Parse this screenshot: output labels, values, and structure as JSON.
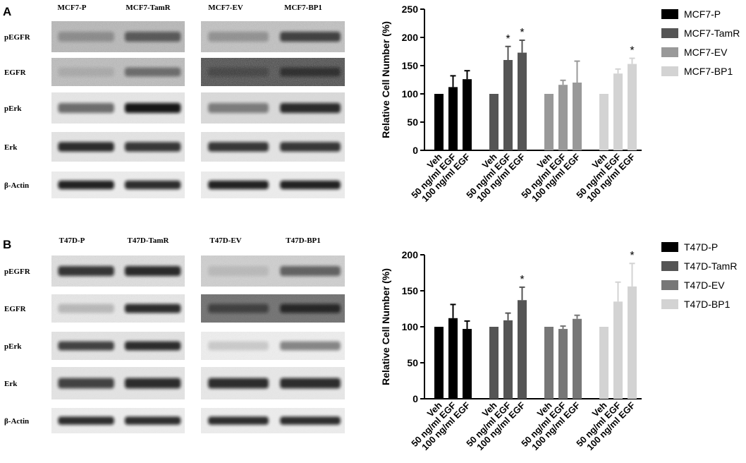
{
  "panels": [
    {
      "letter": "A",
      "blot": {
        "groups": [
          {
            "labels": [
              "MCF7-P",
              "MCF7-TamR"
            ]
          },
          {
            "labels": [
              "MCF7-EV",
              "MCF7-BP1"
            ]
          }
        ],
        "rows": [
          {
            "label": "pEGFR",
            "bg": [
              "#b8b8b8",
              "#c2c2c2"
            ],
            "lanes": [
              [
                0.25,
                0.55
              ],
              [
                0.25,
                0.7
              ]
            ],
            "noise": 0.35
          },
          {
            "label": "EGFR",
            "bg": [
              "#bdbdbd",
              "#4a4a4a"
            ],
            "lanes": [
              [
                0.1,
                0.45
              ],
              [
                0.25,
                0.55
              ]
            ],
            "noise": 0.4
          },
          {
            "label": "pErk",
            "bg": [
              "#e6e6e6",
              "#dadada"
            ],
            "lanes": [
              [
                0.55,
                0.95
              ],
              [
                0.45,
                0.85
              ]
            ],
            "noise": 0.1
          },
          {
            "label": "Erk",
            "bg": [
              "#e4e4e4",
              "#e4e4e4"
            ],
            "lanes": [
              [
                0.85,
                0.8
              ],
              [
                0.8,
                0.8
              ]
            ],
            "noise": 0.1
          },
          {
            "label": "β-Actin",
            "bg": [
              "#ececec",
              "#ececec"
            ],
            "lanes": [
              [
                0.9,
                0.85
              ],
              [
                0.9,
                0.9
              ]
            ],
            "noise": 0.05
          }
        ]
      },
      "chart_data": {
        "type": "bar",
        "ylabel": "Relative Cell Number (%)",
        "ylim": [
          0,
          250
        ],
        "yticks": [
          0,
          50,
          100,
          150,
          200,
          250
        ],
        "categories": [
          "Veh",
          "50 ng/ml EGF",
          "100 ng/ml EGF"
        ],
        "legend_position": "top-right",
        "series": [
          {
            "name": "MCF7-P",
            "color": "#000000",
            "values": [
              100,
              112,
              126
            ],
            "errors": [
              0,
              20,
              15
            ],
            "sig": [
              "",
              "",
              ""
            ]
          },
          {
            "name": "MCF7-TamR",
            "color": "#555555",
            "values": [
              100,
              160,
              173
            ],
            "errors": [
              0,
              24,
              22
            ],
            "sig": [
              "",
              "*",
              "*"
            ]
          },
          {
            "name": "MCF7-EV",
            "color": "#999999",
            "values": [
              100,
              116,
              120
            ],
            "errors": [
              0,
              8,
              38
            ],
            "sig": [
              "",
              "",
              ""
            ]
          },
          {
            "name": "MCF7-BP1",
            "color": "#d3d3d3",
            "values": [
              100,
              136,
              153
            ],
            "errors": [
              0,
              8,
              10
            ],
            "sig": [
              "",
              "",
              "*"
            ]
          }
        ]
      }
    },
    {
      "letter": "B",
      "blot": {
        "groups": [
          {
            "labels": [
              "T47D-P",
              "T47D-TamR"
            ]
          },
          {
            "labels": [
              "T47D-EV",
              "T47D-BP1"
            ]
          }
        ],
        "rows": [
          {
            "label": "pEGFR",
            "bg": [
              "#e0e0e0",
              "#d0d0d0"
            ],
            "lanes": [
              [
                0.8,
                0.85
              ],
              [
                0.1,
                0.55
              ]
            ],
            "noise": 0.25
          },
          {
            "label": "EGFR",
            "bg": [
              "#e8e8e8",
              "#6e6e6e"
            ],
            "lanes": [
              [
                0.2,
                0.85
              ],
              [
                0.5,
                0.75
              ]
            ],
            "noise": 0.2
          },
          {
            "label": "pErk",
            "bg": [
              "#e4e4e4",
              "#efefef"
            ],
            "lanes": [
              [
                0.75,
                0.85
              ],
              [
                0.15,
                0.45
              ]
            ],
            "noise": 0.15
          },
          {
            "label": "Erk",
            "bg": [
              "#e4e4e4",
              "#e8e8e8"
            ],
            "lanes": [
              [
                0.75,
                0.85
              ],
              [
                0.85,
                0.85
              ]
            ],
            "noise": 0.1
          },
          {
            "label": "β-Actin",
            "bg": [
              "#ececec",
              "#ececec"
            ],
            "lanes": [
              [
                0.85,
                0.85
              ],
              [
                0.85,
                0.85
              ]
            ],
            "noise": 0.05
          }
        ]
      },
      "chart_data": {
        "type": "bar",
        "ylabel": "Relative Cell Number (%)",
        "ylim": [
          0,
          200
        ],
        "yticks": [
          0,
          50,
          100,
          150,
          200
        ],
        "categories": [
          "Veh",
          "50 ng/ml EGF",
          "100 ng/ml EGF"
        ],
        "legend_position": "top-right",
        "series": [
          {
            "name": "T47D-P",
            "color": "#000000",
            "values": [
              100,
              112,
              97
            ],
            "errors": [
              0,
              19,
              11
            ],
            "sig": [
              "",
              "",
              ""
            ]
          },
          {
            "name": "T47D-TamR",
            "color": "#555555",
            "values": [
              100,
              109,
              137
            ],
            "errors": [
              0,
              10,
              18
            ],
            "sig": [
              "",
              "",
              "*"
            ]
          },
          {
            "name": "T47D-EV",
            "color": "#777777",
            "values": [
              100,
              97,
              111
            ],
            "errors": [
              0,
              4,
              5
            ],
            "sig": [
              "",
              "",
              ""
            ]
          },
          {
            "name": "T47D-BP1",
            "color": "#d3d3d3",
            "values": [
              100,
              135,
              156
            ],
            "errors": [
              0,
              27,
              32
            ],
            "sig": [
              "",
              "",
              "*"
            ]
          }
        ]
      }
    }
  ]
}
